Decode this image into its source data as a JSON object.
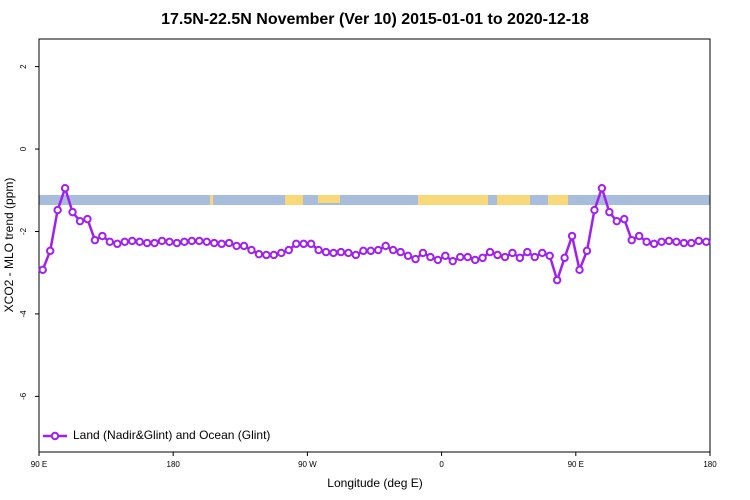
{
  "chart_data": {
    "type": "line",
    "title": "17.5N-22.5N November (Ver 10)   2015-01-01 to 2020-12-18",
    "xlabel": "Longitude (deg E)",
    "ylabel": "XCO2 - MLO trend (ppm)",
    "x": [
      92.5,
      97.5,
      102.5,
      107.5,
      112.5,
      117.5,
      122.5,
      127.5,
      132.5,
      137.5,
      142.5,
      147.5,
      152.5,
      157.5,
      162.5,
      167.5,
      172.5,
      177.5,
      182.5,
      187.5,
      192.5,
      197.5,
      202.5,
      207.5,
      212.5,
      217.5,
      222.5,
      227.5,
      232.5,
      237.5,
      242.5,
      247.5,
      252.5,
      257.5,
      262.5,
      267.5,
      272.5,
      277.5,
      282.5,
      287.5,
      292.5,
      297.5,
      302.5,
      307.5,
      312.5,
      317.5,
      322.5,
      327.5,
      332.5,
      337.5,
      342.5,
      347.5,
      352.5,
      357.5,
      362.5,
      367.5,
      372.5,
      377.5,
      382.5,
      387.5,
      392.5,
      397.5,
      402.5,
      407.5,
      412.5,
      417.5,
      422.5,
      427.5,
      432.5,
      437.5,
      442.5,
      447.5,
      452.5,
      457.5,
      462.5,
      467.5,
      472.5,
      477.5,
      482.5,
      487.5,
      492.5,
      497.5,
      502.5,
      507.5,
      512.5,
      517.5,
      522.5,
      527.5,
      532.5,
      537.5
    ],
    "series": [
      {
        "name": "Land (Nadir&Glint) and Ocean (Glint)",
        "color": "#a020f0",
        "values": [
          -2.93,
          -2.47,
          -1.48,
          -0.95,
          -1.53,
          -1.75,
          -1.7,
          -2.21,
          -2.11,
          -2.25,
          -2.3,
          -2.25,
          -2.23,
          -2.25,
          -2.28,
          -2.28,
          -2.23,
          -2.25,
          -2.28,
          -2.25,
          -2.23,
          -2.23,
          -2.25,
          -2.28,
          -2.3,
          -2.28,
          -2.35,
          -2.35,
          -2.45,
          -2.55,
          -2.57,
          -2.57,
          -2.52,
          -2.45,
          -2.3,
          -2.3,
          -2.3,
          -2.45,
          -2.5,
          -2.52,
          -2.5,
          -2.52,
          -2.57,
          -2.47,
          -2.47,
          -2.45,
          -2.35,
          -2.45,
          -2.5,
          -2.59,
          -2.67,
          -2.52,
          -2.62,
          -2.69,
          -2.59,
          -2.72,
          -2.62,
          -2.62,
          -2.69,
          -2.64,
          -2.5,
          -2.57,
          -2.62,
          -2.52,
          -2.64,
          -2.5,
          -2.62,
          -2.52,
          -2.59,
          -3.18,
          -2.64,
          -2.11,
          -2.93,
          -2.47,
          -1.48,
          -0.95,
          -1.53,
          -1.75,
          -1.7,
          -2.21,
          -2.11,
          -2.25,
          -2.3,
          -2.25,
          -2.23,
          -2.25,
          -2.28,
          -2.28,
          -2.23,
          -2.25
        ]
      }
    ],
    "xlim": [
      90,
      540
    ],
    "xticks": [
      {
        "value": 90,
        "label": "90 E"
      },
      180,
      {
        "value": 270,
        "label": "90 W"
      },
      0,
      {
        "value": 450,
        "label": "90 E"
      },
      {
        "value": 540,
        "label": "180"
      }
    ],
    "ylim": [
      -7.35,
      2.67
    ],
    "yticks": [
      -6,
      -4,
      -2,
      0,
      2
    ],
    "legend": "bottom-left"
  }
}
